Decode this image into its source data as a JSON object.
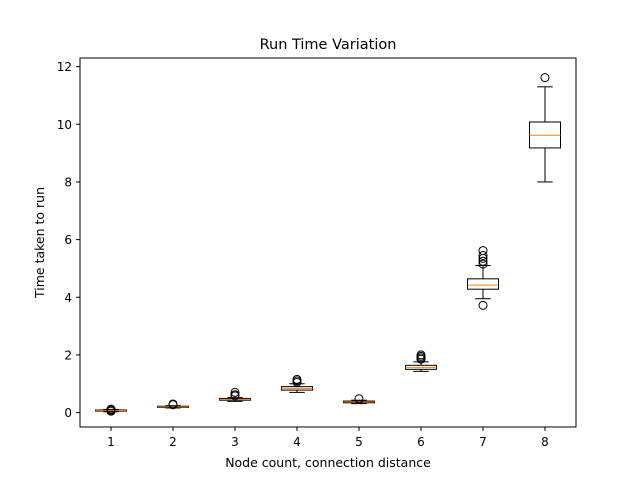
{
  "chart_data": {
    "type": "box",
    "title": "Run Time Variation",
    "xlabel": "Node count, connection distance",
    "ylabel": "Time taken to run",
    "categories": [
      "1",
      "2",
      "3",
      "4",
      "5",
      "6",
      "7",
      "8"
    ],
    "ylim": [
      -0.5,
      12.3
    ],
    "yticks": [
      0,
      2,
      4,
      6,
      8,
      10,
      12
    ],
    "grid": false,
    "boxes": [
      {
        "label": "1",
        "whisker_low": 0.03,
        "q1": 0.05,
        "median": 0.07,
        "q3": 0.09,
        "whisker_high": 0.11,
        "outliers": [
          0.05,
          0.08,
          0.1,
          0.12
        ]
      },
      {
        "label": "2",
        "whisker_low": 0.16,
        "q1": 0.18,
        "median": 0.2,
        "q3": 0.22,
        "whisker_high": 0.24,
        "outliers": [
          0.27,
          0.3
        ]
      },
      {
        "label": "3",
        "whisker_low": 0.39,
        "q1": 0.43,
        "median": 0.46,
        "q3": 0.49,
        "whisker_high": 0.52,
        "outliers": [
          0.58,
          0.62,
          0.7
        ]
      },
      {
        "label": "4",
        "whisker_low": 0.7,
        "q1": 0.78,
        "median": 0.84,
        "q3": 0.9,
        "whisker_high": 1.0,
        "outliers": [
          1.05,
          1.1,
          1.15
        ]
      },
      {
        "label": "5",
        "whisker_low": 0.31,
        "q1": 0.34,
        "median": 0.37,
        "q3": 0.4,
        "whisker_high": 0.43,
        "outliers": [
          0.48
        ]
      },
      {
        "label": "6",
        "whisker_low": 1.43,
        "q1": 1.5,
        "median": 1.56,
        "q3": 1.64,
        "whisker_high": 1.76,
        "outliers": [
          1.85,
          1.9,
          1.95,
          2.0
        ]
      },
      {
        "label": "7",
        "whisker_low": 3.95,
        "q1": 4.28,
        "median": 4.42,
        "q3": 4.64,
        "whisker_high": 5.1,
        "outliers": [
          3.72,
          5.15,
          5.25,
          5.35,
          5.45,
          5.62
        ]
      },
      {
        "label": "8",
        "whisker_low": 8.0,
        "q1": 9.18,
        "median": 9.62,
        "q3": 10.08,
        "whisker_high": 11.3,
        "outliers": [
          11.62
        ]
      }
    ],
    "colors": {
      "box": "#000000",
      "median": "#ff7f0e",
      "outlier": "#000000"
    }
  }
}
